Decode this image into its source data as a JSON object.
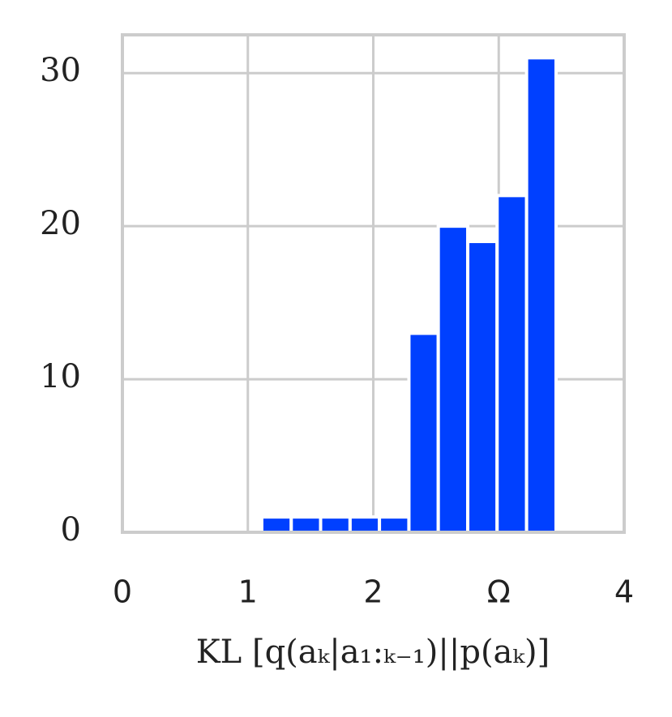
{
  "chart_data": {
    "type": "histogram",
    "x_label": "KL [q(aₖ|a₁:ₖ₋₁)||p(aₖ)]",
    "bins": [
      1.111,
      1.346,
      1.58,
      1.815,
      2.049,
      2.284,
      2.518,
      2.753,
      2.987,
      3.222,
      3.457
    ],
    "counts": [
      1,
      1,
      1,
      1,
      1,
      13,
      20,
      19,
      22,
      31
    ],
    "color": "#0040ff",
    "xlim": [
      0,
      4
    ],
    "xticks": [
      0,
      1,
      2,
      {
        "value": 3,
        "label": "Ω"
      },
      4
    ],
    "ylim": [
      0,
      32.5
    ],
    "yticks": [
      0,
      10,
      20,
      30
    ],
    "grid": true
  }
}
